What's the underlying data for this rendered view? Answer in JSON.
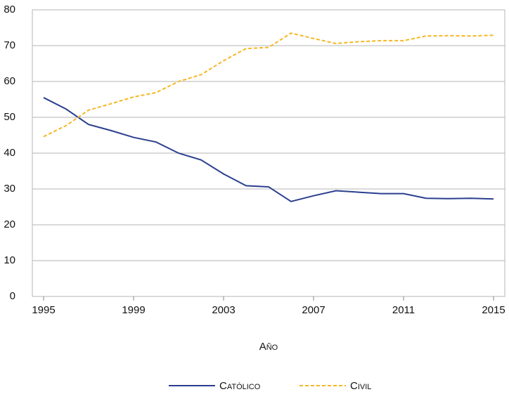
{
  "chart_data": {
    "type": "line",
    "x_label": "Año",
    "x": [
      1995,
      1996,
      1997,
      1998,
      1999,
      2000,
      2001,
      2002,
      2003,
      2004,
      2005,
      2006,
      2007,
      2008,
      2009,
      2010,
      2011,
      2012,
      2013,
      2014,
      2015
    ],
    "series": [
      {
        "name": "Católico",
        "color": "#2b3f8f",
        "dash": false,
        "values": [
          55.5,
          52.3,
          48,
          46.3,
          44.4,
          43.1,
          40,
          38.1,
          34.2,
          30.9,
          30.6,
          26.5,
          28.1,
          29.5,
          29.1,
          28.7,
          28.7,
          27.4,
          27.3,
          27.4,
          27.2
        ]
      },
      {
        "name": "Civil",
        "color": "#f5b622",
        "dash": true,
        "values": [
          44.6,
          47.7,
          52,
          53.8,
          55.7,
          56.9,
          60,
          61.9,
          65.8,
          69.2,
          69.5,
          73.5,
          72,
          70.6,
          71.1,
          71.4,
          71.4,
          72.7,
          72.8,
          72.7,
          72.9
        ]
      }
    ],
    "xlim": [
      1994.5,
      2015.5
    ],
    "xticks": [
      1995,
      1999,
      2003,
      2007,
      2011,
      2015
    ],
    "ylim": [
      0,
      80
    ],
    "yticks": [
      0,
      10,
      20,
      30,
      40,
      50,
      60,
      70,
      80
    ],
    "grid": true,
    "legend": "bottom"
  }
}
